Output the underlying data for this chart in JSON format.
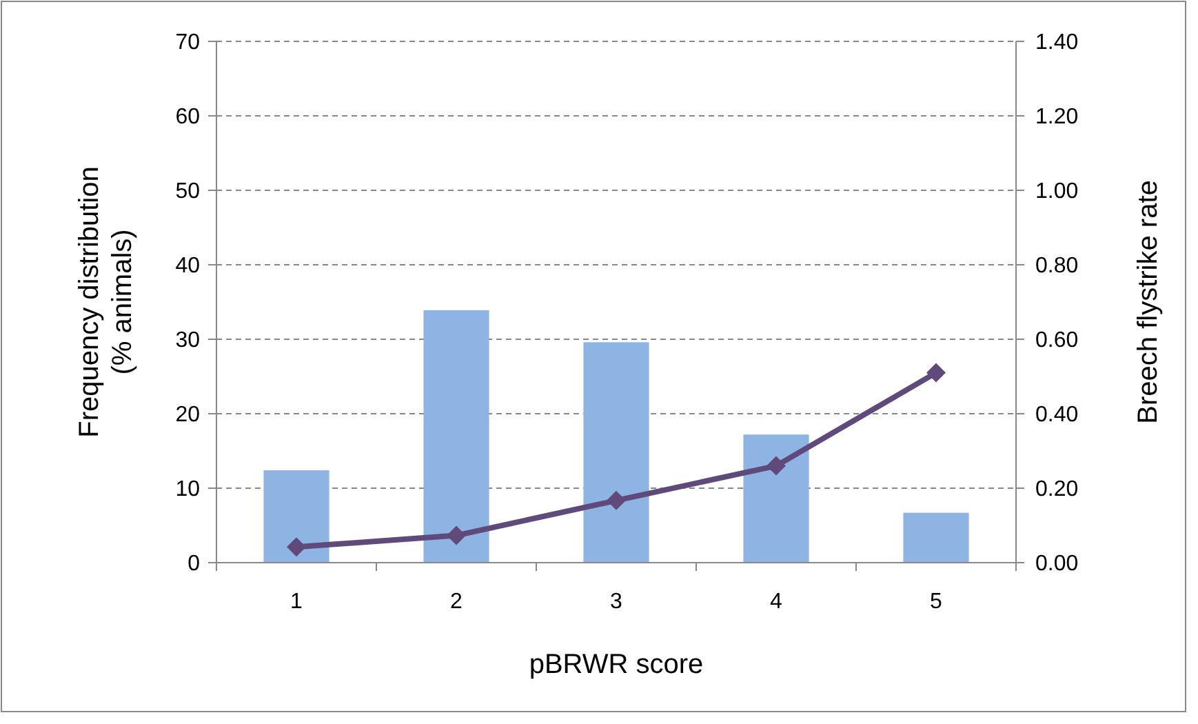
{
  "chart_data": {
    "type": "bar",
    "xlabel": "pBRWR score",
    "ylabel": "Frequency distribution\n(% animals)",
    "y2label": "Breech flystrike rate",
    "categories": [
      "1",
      "2",
      "3",
      "4",
      "5"
    ],
    "series": [
      {
        "color": "#8eb4e3",
        "values": [
          12.4,
          33.9,
          29.6,
          17.2,
          6.7
        ]
      },
      {
        "type": "line",
        "axis": "y2",
        "color": "#604a7b",
        "marker": "diamond",
        "values": [
          0.042,
          0.073,
          0.167,
          0.26,
          0.51
        ]
      }
    ],
    "ylim": [
      0,
      70
    ],
    "yticks": [
      0,
      10,
      20,
      30,
      40,
      50,
      60,
      70
    ],
    "y2lim": [
      0,
      1.4
    ],
    "y2ticks": [
      {
        "value": 0,
        "label": "0.00"
      },
      {
        "value": 0.2,
        "label": "0.20"
      },
      {
        "value": 0.4,
        "label": "0.40"
      },
      {
        "value": 0.6,
        "label": "0.60"
      },
      {
        "value": 0.8,
        "label": "0.80"
      },
      {
        "value": 1,
        "label": "1.00"
      },
      {
        "value": 1.2,
        "label": "1.20"
      },
      {
        "value": 1.4,
        "label": "1.40"
      }
    ],
    "grid": "y"
  }
}
